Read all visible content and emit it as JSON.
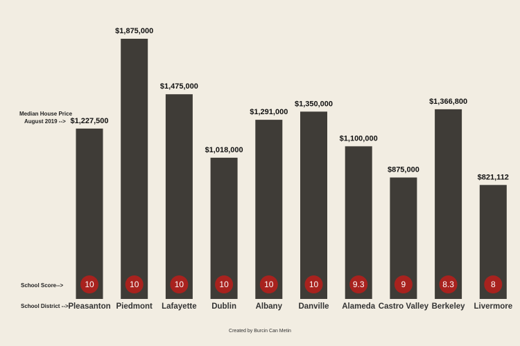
{
  "chart_data": {
    "type": "bar",
    "title": "",
    "categories": [
      "Pleasanton",
      "Piedmont",
      "Lafayette",
      "Dublin",
      "Albany",
      "Danville",
      "Alameda",
      "Castro Valley",
      "Berkeley",
      "Livermore"
    ],
    "values": [
      1227500,
      1875000,
      1475000,
      1018000,
      1291000,
      1350000,
      1100000,
      875000,
      1366800,
      821112
    ],
    "value_labels": [
      "$1,227,500",
      "$1,875,000",
      "$1,475,000",
      "$1,018,000",
      "$1,291,000",
      "$1,350,000",
      "$1,100,000",
      "$875,000",
      "$1,366,800",
      "$821,112"
    ],
    "school_scores": [
      "10",
      "10",
      "10",
      "10",
      "10",
      "10",
      "9.3",
      "9",
      "8.3",
      "8"
    ],
    "ylim": [
      0,
      1875000
    ],
    "grid": false,
    "legend": "none",
    "annotations": {
      "price_line1": "Median House Price",
      "price_line2": "August  2019 -->",
      "score_label": "School Score-->",
      "district_label": "School District -->"
    },
    "credit": "Created by Burcin Can Metin"
  },
  "colors": {
    "background": "#f2ede2",
    "bar": "#3f3c37",
    "score_circle": "#a8221e",
    "text": "#111111"
  }
}
